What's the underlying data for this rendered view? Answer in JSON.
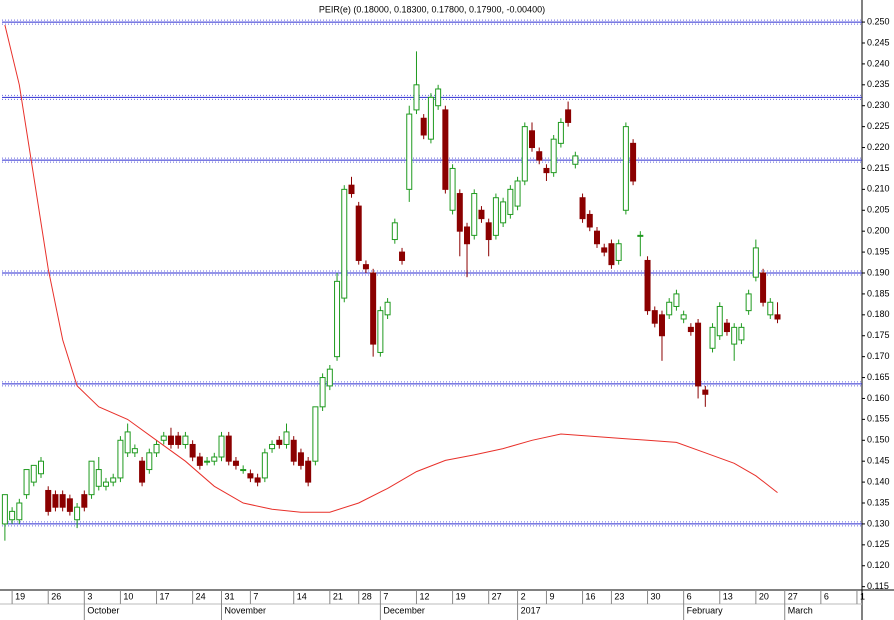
{
  "chart_data": {
    "type": "candlestick",
    "title": "PEIR(e) (0.18000, 0.18300, 0.17800, 0.17900, -0.00400)",
    "up_color": "#1f9a1f",
    "down_color": "#8b0000",
    "level_color": "#2a2ad0",
    "ma_color": "#e8302a",
    "x": [
      0,
      1,
      2,
      3,
      4,
      5,
      6,
      7,
      8,
      9,
      10,
      11,
      12,
      13,
      14,
      15,
      16,
      17,
      18,
      19,
      20,
      21,
      22,
      23,
      24,
      25,
      26,
      27,
      28,
      29,
      30,
      31,
      32,
      33,
      34,
      35,
      36,
      37,
      38,
      39,
      40,
      41,
      42,
      43,
      44,
      45,
      46,
      47,
      48,
      49,
      50,
      51,
      52,
      53,
      54,
      55,
      56,
      57,
      58,
      59,
      60,
      61,
      62,
      63,
      64,
      65,
      66,
      67,
      68,
      69,
      70,
      71,
      72,
      73,
      74,
      75,
      76,
      77,
      78,
      79,
      80,
      81,
      82,
      83,
      84,
      85,
      86,
      87,
      88,
      89,
      90,
      91,
      92,
      93,
      94,
      95,
      96,
      97,
      98,
      99,
      100,
      101,
      102,
      103,
      104,
      105,
      106,
      107
    ],
    "open": [
      0.13,
      0.131,
      0.131,
      0.137,
      0.14,
      0.142,
      0.138,
      0.137,
      0.137,
      0.136,
      0.131,
      0.137,
      0.137,
      0.139,
      0.139,
      0.14,
      0.141,
      0.147,
      0.147,
      0.145,
      0.143,
      0.147,
      0.15,
      0.151,
      0.151,
      0.149,
      0.149,
      0.146,
      0.145,
      0.145,
      0.146,
      0.151,
      0.145,
      0.143,
      0.142,
      0.141,
      0.141,
      0.148,
      0.15,
      0.149,
      0.15,
      0.147,
      0.145,
      0.145,
      0.158,
      0.163,
      0.17,
      0.184,
      0.211,
      0.206,
      0.192,
      0.19,
      0.171,
      0.18,
      0.198,
      0.195,
      0.21,
      0.229,
      0.227,
      0.222,
      0.23,
      0.229,
      0.205,
      0.209,
      0.201,
      0.199,
      0.205,
      0.202,
      0.199,
      0.202,
      0.204,
      0.206,
      0.212,
      0.224,
      0.219,
      0.215,
      0.214,
      0.221,
      0.229,
      0.216,
      0.208,
      0.204,
      0.2,
      0.196,
      0.197,
      0.193,
      0.205,
      0.221,
      0.199,
      0.193,
      0.181,
      0.18,
      0.18,
      0.182,
      0.179,
      0.177,
      0.178,
      0.162,
      0.172,
      0.175,
      0.178,
      0.173,
      0.174,
      0.181,
      0.189,
      0.19,
      0.18,
      0.18
    ],
    "high": [
      0.137,
      0.134,
      0.136,
      0.143,
      0.144,
      0.146,
      0.139,
      0.138,
      0.138,
      0.137,
      0.135,
      0.138,
      0.145,
      0.146,
      0.141,
      0.142,
      0.151,
      0.154,
      0.149,
      0.146,
      0.148,
      0.15,
      0.152,
      0.153,
      0.152,
      0.152,
      0.15,
      0.147,
      0.146,
      0.147,
      0.152,
      0.152,
      0.146,
      0.144,
      0.143,
      0.142,
      0.148,
      0.15,
      0.151,
      0.154,
      0.151,
      0.148,
      0.146,
      0.158,
      0.166,
      0.168,
      0.19,
      0.211,
      0.213,
      0.207,
      0.193,
      0.191,
      0.182,
      0.184,
      0.203,
      0.196,
      0.23,
      0.243,
      0.228,
      0.233,
      0.235,
      0.23,
      0.216,
      0.21,
      0.202,
      0.21,
      0.206,
      0.203,
      0.209,
      0.208,
      0.211,
      0.213,
      0.226,
      0.226,
      0.22,
      0.216,
      0.223,
      0.227,
      0.231,
      0.219,
      0.209,
      0.205,
      0.201,
      0.197,
      0.198,
      0.198,
      0.226,
      0.222,
      0.2,
      0.194,
      0.182,
      0.181,
      0.184,
      0.186,
      0.181,
      0.178,
      0.179,
      0.163,
      0.178,
      0.183,
      0.179,
      0.178,
      0.178,
      0.186,
      0.198,
      0.191,
      0.184,
      0.183
    ],
    "low": [
      0.126,
      0.13,
      0.13,
      0.136,
      0.139,
      0.141,
      0.132,
      0.133,
      0.133,
      0.132,
      0.129,
      0.133,
      0.136,
      0.138,
      0.138,
      0.139,
      0.14,
      0.146,
      0.146,
      0.139,
      0.142,
      0.146,
      0.149,
      0.148,
      0.148,
      0.148,
      0.145,
      0.143,
      0.144,
      0.144,
      0.145,
      0.144,
      0.143,
      0.142,
      0.14,
      0.139,
      0.14,
      0.147,
      0.148,
      0.148,
      0.144,
      0.143,
      0.139,
      0.144,
      0.157,
      0.162,
      0.169,
      0.183,
      0.208,
      0.192,
      0.19,
      0.17,
      0.17,
      0.179,
      0.197,
      0.192,
      0.207,
      0.228,
      0.222,
      0.221,
      0.229,
      0.209,
      0.204,
      0.194,
      0.189,
      0.198,
      0.202,
      0.194,
      0.198,
      0.201,
      0.203,
      0.205,
      0.211,
      0.219,
      0.216,
      0.212,
      0.213,
      0.22,
      0.225,
      0.215,
      0.202,
      0.2,
      0.196,
      0.194,
      0.191,
      0.192,
      0.204,
      0.211,
      0.194,
      0.18,
      0.177,
      0.169,
      0.179,
      0.181,
      0.178,
      0.175,
      0.16,
      0.158,
      0.171,
      0.174,
      0.175,
      0.169,
      0.173,
      0.18,
      0.188,
      0.182,
      0.179,
      0.178
    ],
    "close": [
      0.137,
      0.133,
      0.135,
      0.143,
      0.144,
      0.145,
      0.133,
      0.134,
      0.134,
      0.133,
      0.134,
      0.134,
      0.145,
      0.143,
      0.14,
      0.141,
      0.15,
      0.152,
      0.148,
      0.14,
      0.147,
      0.149,
      0.151,
      0.149,
      0.149,
      0.151,
      0.146,
      0.144,
      0.145,
      0.146,
      0.151,
      0.145,
      0.144,
      0.143,
      0.141,
      0.14,
      0.147,
      0.149,
      0.149,
      0.152,
      0.145,
      0.144,
      0.14,
      0.158,
      0.165,
      0.167,
      0.188,
      0.21,
      0.209,
      0.193,
      0.191,
      0.173,
      0.181,
      0.183,
      0.202,
      0.193,
      0.228,
      0.235,
      0.223,
      0.232,
      0.234,
      0.21,
      0.215,
      0.2,
      0.197,
      0.209,
      0.203,
      0.198,
      0.208,
      0.207,
      0.21,
      0.212,
      0.225,
      0.22,
      0.217,
      0.214,
      0.222,
      0.226,
      0.226,
      0.218,
      0.203,
      0.201,
      0.197,
      0.195,
      0.192,
      0.197,
      0.225,
      0.212,
      0.199,
      0.181,
      0.178,
      0.175,
      0.183,
      0.185,
      0.18,
      0.176,
      0.163,
      0.161,
      0.177,
      0.182,
      0.176,
      0.177,
      0.177,
      0.185,
      0.196,
      0.183,
      0.183,
      0.179
    ],
    "moving_average": {
      "x": [
        0,
        2,
        4,
        6,
        8,
        10,
        13,
        17,
        21,
        25,
        29,
        33,
        37,
        41,
        45,
        49,
        53,
        57,
        61,
        65,
        69,
        73,
        77,
        81,
        85,
        89,
        93,
        97,
        101,
        104,
        107
      ],
      "values": [
        0.2493,
        0.235,
        0.213,
        0.191,
        0.174,
        0.163,
        0.158,
        0.155,
        0.15,
        0.145,
        0.139,
        0.135,
        0.1335,
        0.1328,
        0.1328,
        0.135,
        0.1385,
        0.1425,
        0.1452,
        0.1465,
        0.148,
        0.15,
        0.1515,
        0.151,
        0.1505,
        0.15,
        0.1495,
        0.147,
        0.1445,
        0.1415,
        0.1375
      ]
    },
    "levels": [
      0.25,
      0.232,
      0.217,
      0.19,
      0.1635,
      0.13
    ],
    "xlim": [
      -0.4,
      118.7
    ],
    "ylim": [
      0.1142,
      0.2548
    ],
    "yticks": [
      {
        "value": 0.115,
        "label": "0.115"
      },
      {
        "value": 0.12,
        "label": "0.120"
      },
      {
        "value": 0.125,
        "label": "0.125"
      },
      {
        "value": 0.13,
        "label": "0.130"
      },
      {
        "value": 0.135,
        "label": "0.135"
      },
      {
        "value": 0.14,
        "label": "0.140"
      },
      {
        "value": 0.145,
        "label": "0.145"
      },
      {
        "value": 0.15,
        "label": "0.150"
      },
      {
        "value": 0.155,
        "label": "0.155"
      },
      {
        "value": 0.16,
        "label": "0.160"
      },
      {
        "value": 0.165,
        "label": "0.165"
      },
      {
        "value": 0.17,
        "label": "0.170"
      },
      {
        "value": 0.175,
        "label": "0.175"
      },
      {
        "value": 0.18,
        "label": "0.180"
      },
      {
        "value": 0.185,
        "label": "0.185"
      },
      {
        "value": 0.19,
        "label": "0.190"
      },
      {
        "value": 0.195,
        "label": "0.195"
      },
      {
        "value": 0.2,
        "label": "0.200"
      },
      {
        "value": 0.205,
        "label": "0.205"
      },
      {
        "value": 0.21,
        "label": "0.210"
      },
      {
        "value": 0.215,
        "label": "0.215"
      },
      {
        "value": 0.22,
        "label": "0.220"
      },
      {
        "value": 0.225,
        "label": "0.225"
      },
      {
        "value": 0.23,
        "label": "0.230"
      },
      {
        "value": 0.235,
        "label": "0.235"
      },
      {
        "value": 0.24,
        "label": "0.240"
      },
      {
        "value": 0.245,
        "label": "0.245"
      },
      {
        "value": 0.25,
        "label": "0.250"
      }
    ],
    "xticks": [
      {
        "value": 1,
        "label": "19"
      },
      {
        "value": 6,
        "label": "26"
      },
      {
        "value": 11,
        "label": "3"
      },
      {
        "value": 16,
        "label": "10"
      },
      {
        "value": 21,
        "label": "17"
      },
      {
        "value": 26,
        "label": "24"
      },
      {
        "value": 30,
        "label": "31"
      },
      {
        "value": 34,
        "label": "7"
      },
      {
        "value": 40,
        "label": "14"
      },
      {
        "value": 45,
        "label": "21"
      },
      {
        "value": 49,
        "label": "28"
      },
      {
        "value": 52,
        "label": "7"
      },
      {
        "value": 57,
        "label": "12"
      },
      {
        "value": 62,
        "label": "19"
      },
      {
        "value": 67,
        "label": "27"
      },
      {
        "value": 71,
        "label": "2"
      },
      {
        "value": 75,
        "label": "9"
      },
      {
        "value": 80,
        "label": "16"
      },
      {
        "value": 84,
        "label": "23"
      },
      {
        "value": 89,
        "label": "30"
      },
      {
        "value": 94,
        "label": "6"
      },
      {
        "value": 99,
        "label": "13"
      },
      {
        "value": 104,
        "label": "20"
      },
      {
        "value": 108,
        "label": "27"
      },
      {
        "value": 113,
        "label": "6"
      },
      {
        "value": 118,
        "label": "1"
      }
    ],
    "month_ticks": [
      {
        "value": 11,
        "label": "October"
      },
      {
        "value": 30,
        "label": "November"
      },
      {
        "value": 52,
        "label": "December"
      },
      {
        "value": 71,
        "label": "2017"
      },
      {
        "value": 94,
        "label": "February"
      },
      {
        "value": 108,
        "label": "March"
      }
    ]
  }
}
